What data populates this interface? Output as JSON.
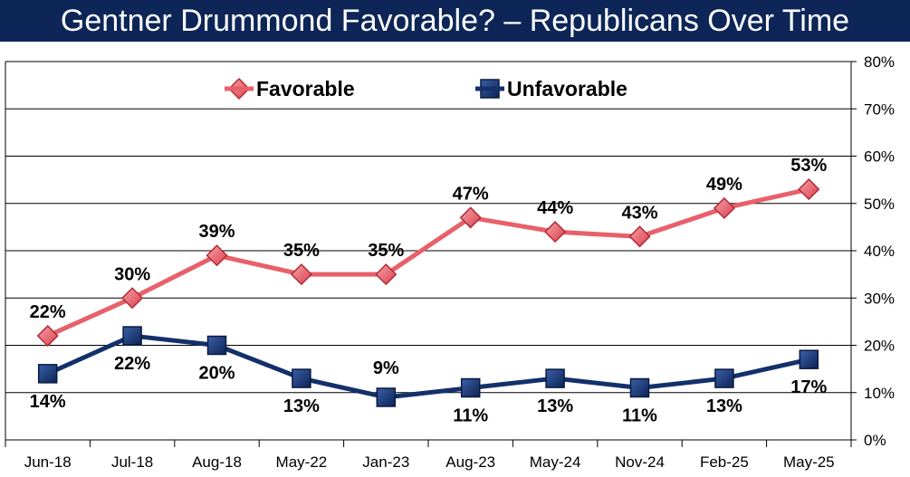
{
  "title": "Gentner Drummond Favorable? – Republicans Over Time",
  "chart_data": {
    "type": "line",
    "title": "Gentner Drummond Favorable? – Republicans Over Time",
    "categories": [
      "Jun-18",
      "Jul-18",
      "Aug-18",
      "May-22",
      "Jan-23",
      "Aug-23",
      "May-24",
      "Nov-24",
      "Feb-25",
      "May-25"
    ],
    "series": [
      {
        "name": "Favorable",
        "values": [
          22,
          30,
          39,
          35,
          35,
          47,
          44,
          43,
          49,
          53
        ],
        "labels": [
          "22%",
          "30%",
          "39%",
          "35%",
          "35%",
          "47%",
          "44%",
          "43%",
          "49%",
          "53%"
        ],
        "color": "#e8606a",
        "marker": "diamond"
      },
      {
        "name": "Unfavorable",
        "values": [
          14,
          22,
          20,
          13,
          9,
          11,
          13,
          11,
          13,
          17
        ],
        "labels": [
          "14%",
          "22%",
          "20%",
          "13%",
          "9%",
          "11%",
          "13%",
          "11%",
          "13%",
          "17%"
        ],
        "color": "#13306b",
        "marker": "square"
      }
    ],
    "yaxis": {
      "position": "right",
      "min": 0,
      "max": 80,
      "ticks": [
        0,
        10,
        20,
        30,
        40,
        50,
        60,
        70,
        80
      ],
      "tick_labels": [
        "0%",
        "10%",
        "20%",
        "30%",
        "40%",
        "50%",
        "60%",
        "70%",
        "80%"
      ]
    },
    "ylim": [
      0,
      80
    ],
    "grid": true,
    "legend": "top-center"
  }
}
